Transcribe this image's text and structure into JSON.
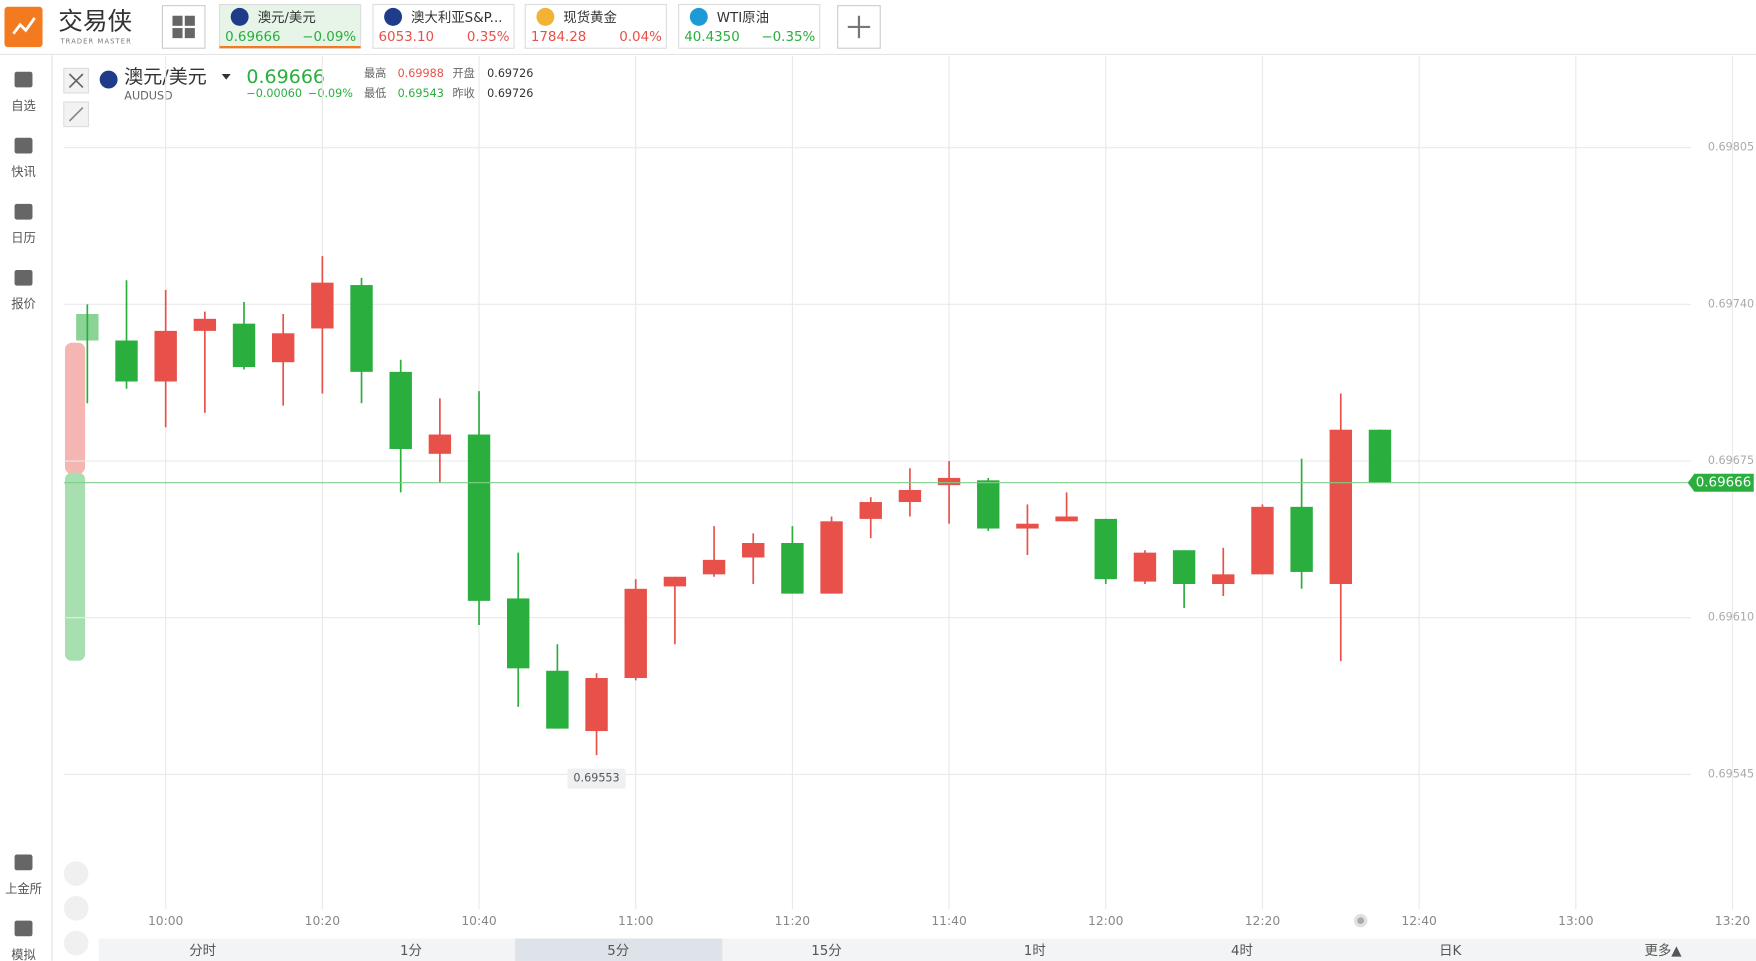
{
  "app": {
    "logo": "交易侠",
    "logo_sub": "TRADER MASTER",
    "tabs": [
      {
        "name": "澳元/美元",
        "price": "0.69666",
        "change": "−0.09%"
      },
      {
        "name": "澳大利亚S&P...",
        "price": "6053.10",
        "change": "0.35%"
      },
      {
        "name": "现货黄金",
        "price": "1784.28",
        "change": "0.04%"
      },
      {
        "name": "WTI原油",
        "price": "40.4350",
        "change": "−0.35%"
      }
    ],
    "sidebar": [
      "自选",
      "快讯",
      "日历",
      "报价",
      "上金所",
      "模拟"
    ],
    "header": {
      "name": "澳元/美元",
      "code": "AUDUSD",
      "price": "0.69666",
      "change": "−0.00060",
      "change_pct": "−0.09%",
      "high_label": "最高",
      "high": "0.69988",
      "open_label": "开盘",
      "open": "0.69726",
      "low_label": "最低",
      "low": "0.69543",
      "prev_label": "昨收",
      "prev": "0.69726"
    },
    "periods": [
      "分时",
      "1分",
      "5分",
      "15分",
      "1时",
      "4时",
      "日K",
      "更多▲"
    ]
  },
  "chart_data": {
    "type": "candlestick",
    "up_color": "#e8504a",
    "down_color": "#2aae3e",
    "last_price": 0.69666,
    "grid": true,
    "xlim": [
      "09:47",
      "13:23"
    ],
    "xticks": [
      "10:00",
      "10:20",
      "10:40",
      "11:00",
      "11:20",
      "11:40",
      "12:00",
      "12:20",
      "12:40",
      "13:00",
      "13:20"
    ],
    "ylim": [
      0.69489,
      0.69843
    ],
    "yticks": [
      0.69545,
      {
        "value": 0.6961,
        "label": "0.69610"
      },
      0.69675,
      {
        "value": 0.6974,
        "label": "0.69740"
      },
      0.69805
    ],
    "x": [
      "09:50",
      "09:55",
      "10:00",
      "10:05",
      "10:10",
      "10:15",
      "10:20",
      "10:25",
      "10:30",
      "10:35",
      "10:40",
      "10:45",
      "10:50",
      "10:55",
      "11:00",
      "11:05",
      "11:10",
      "11:15",
      "11:20",
      "11:25",
      "11:30",
      "11:35",
      "11:40",
      "11:45",
      "11:50",
      "11:55",
      "12:00",
      "12:05",
      "12:10",
      "12:15",
      "12:20",
      "12:25",
      "12:30",
      "12:35"
    ],
    "open": [
      0.69736,
      0.69725,
      0.69708,
      0.69729,
      0.69732,
      0.69716,
      0.6973,
      0.69748,
      0.69712,
      0.69678,
      0.69686,
      0.69618,
      0.69588,
      0.69563,
      0.69585,
      0.69623,
      0.69628,
      0.69635,
      0.69641,
      0.6962,
      0.69651,
      0.69658,
      0.69665,
      0.69667,
      0.69647,
      0.6965,
      0.69651,
      0.69625,
      0.69638,
      0.69624,
      0.69628,
      0.69656,
      0.69624,
      0.69688
    ],
    "high": [
      0.6974,
      0.6975,
      0.69746,
      0.69737,
      0.69741,
      0.69736,
      0.6976,
      0.69751,
      0.69717,
      0.69701,
      0.69704,
      0.69637,
      0.69599,
      0.69587,
      0.69626,
      0.69627,
      0.69648,
      0.69645,
      0.69648,
      0.69652,
      0.6966,
      0.69672,
      0.69675,
      0.69668,
      0.69657,
      0.69662,
      0.69651,
      0.69638,
      0.69638,
      0.69639,
      0.69657,
      0.69676,
      0.69703,
      0.69688
    ],
    "low": [
      0.69699,
      0.69705,
      0.69689,
      0.69695,
      0.69713,
      0.69698,
      0.69703,
      0.69699,
      0.69662,
      0.69666,
      0.69607,
      0.69573,
      0.69564,
      0.69553,
      0.69584,
      0.69599,
      0.69627,
      0.69624,
      0.6962,
      0.6962,
      0.69643,
      0.69652,
      0.69649,
      0.69646,
      0.69636,
      0.6965,
      0.69624,
      0.69624,
      0.69614,
      0.69619,
      0.69628,
      0.69622,
      0.69592,
      0.69666
    ],
    "close": [
      0.69725,
      0.69708,
      0.69729,
      0.69734,
      0.69714,
      0.69728,
      0.69749,
      0.69712,
      0.6968,
      0.69686,
      0.69617,
      0.69589,
      0.69564,
      0.69585,
      0.69622,
      0.69627,
      0.69634,
      0.69641,
      0.6962,
      0.6965,
      0.69658,
      0.69663,
      0.69668,
      0.69647,
      0.69649,
      0.69652,
      0.69626,
      0.69637,
      0.69624,
      0.69628,
      0.69656,
      0.69629,
      0.69688,
      0.69666
    ]
  }
}
